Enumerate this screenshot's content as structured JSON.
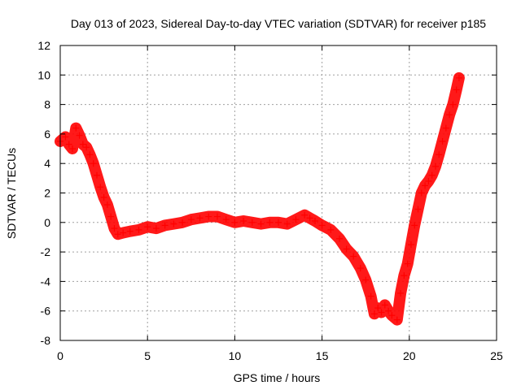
{
  "chart_data": {
    "type": "scatter",
    "title": "Day 013 of 2023, Sidereal Day-to-day VTEC variation (SDTVAR) for receiver p185",
    "xlabel": "GPS time / hours",
    "ylabel": "SDTVAR / TECUs",
    "xlim": [
      0,
      25
    ],
    "ylim": [
      -8,
      12
    ],
    "xticks": [
      0,
      5,
      10,
      15,
      20,
      25
    ],
    "yticks": [
      -8,
      -6,
      -4,
      -2,
      0,
      2,
      4,
      6,
      8,
      10,
      12
    ],
    "xtick_labels": [
      "0",
      "5",
      "10",
      "15",
      "20",
      "25"
    ],
    "ytick_labels": [
      "-8",
      "-6",
      "-4",
      "-2",
      "0",
      "2",
      "4",
      "6",
      "8",
      "10",
      "12"
    ],
    "grid": true,
    "marker": "+",
    "series": [
      {
        "name": "SDTVAR",
        "color": "#ff0000",
        "x": [
          0.0,
          0.3,
          0.5,
          0.7,
          0.9,
          1.1,
          1.3,
          1.5,
          1.7,
          1.9,
          2.1,
          2.3,
          2.5,
          2.7,
          2.9,
          3.1,
          3.3,
          3.6,
          4.0,
          4.5,
          5.0,
          5.5,
          6.0,
          6.5,
          7.0,
          7.5,
          8.0,
          8.5,
          9.0,
          9.5,
          10.0,
          10.5,
          11.0,
          11.5,
          12.0,
          12.5,
          13.0,
          13.5,
          14.0,
          14.3,
          14.6,
          15.0,
          15.5,
          16.0,
          16.4,
          16.8,
          17.2,
          17.5,
          17.8,
          18.0,
          18.2,
          18.4,
          18.6,
          18.8,
          19.0,
          19.3,
          19.5,
          19.7,
          19.9,
          20.1,
          20.3,
          20.5,
          20.7,
          20.9,
          21.1,
          21.3,
          21.5,
          21.7,
          21.9,
          22.1,
          22.3,
          22.5,
          22.7,
          22.85
        ],
        "values": [
          5.5,
          5.8,
          5.3,
          5.0,
          6.4,
          5.9,
          5.3,
          5.1,
          4.6,
          4.0,
          3.2,
          2.4,
          1.7,
          1.2,
          0.4,
          -0.4,
          -0.8,
          -0.7,
          -0.6,
          -0.5,
          -0.3,
          -0.4,
          -0.2,
          -0.1,
          0.0,
          0.2,
          0.3,
          0.4,
          0.4,
          0.2,
          0.0,
          0.1,
          0.0,
          -0.1,
          0.0,
          0.0,
          -0.1,
          0.2,
          0.5,
          0.3,
          0.1,
          -0.2,
          -0.5,
          -1.1,
          -1.8,
          -2.3,
          -3.1,
          -3.9,
          -5.0,
          -6.2,
          -5.8,
          -6.1,
          -5.6,
          -6.0,
          -6.3,
          -6.6,
          -4.8,
          -3.6,
          -2.8,
          -1.5,
          -0.2,
          0.9,
          2.0,
          2.5,
          2.8,
          3.2,
          3.8,
          4.6,
          5.5,
          6.4,
          7.3,
          8.0,
          9.0,
          9.8
        ]
      }
    ]
  }
}
